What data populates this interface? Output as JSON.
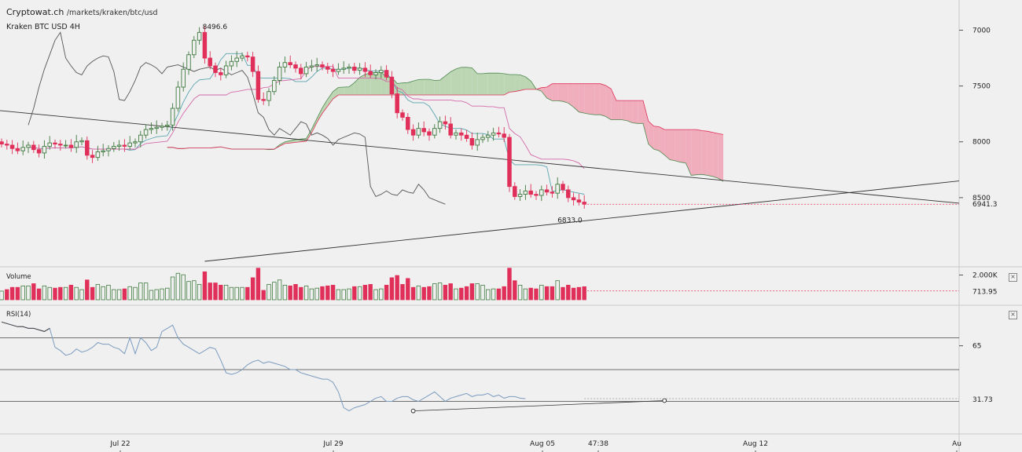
{
  "header": {
    "site": "Cryptowat.ch",
    "path": "/markets/kraken/btc/usd",
    "subtitle": "Kraken BTC USD 4H"
  },
  "colors": {
    "background": "#f0f0f0",
    "up": "#3f7a3f",
    "down": "#e0305a",
    "cloud_bull": "#bcd6b4",
    "cloud_bear": "#f0aebd",
    "tenkan": "#5aa5b0",
    "kijun": "#d46aa8",
    "chikou": "#555555",
    "rsi_line": "#7b9bbf",
    "trendline": "#333333"
  },
  "x_axis": {
    "labels": [
      "Jul 22",
      "Jul 29",
      "Aug 05",
      "47:38",
      "Aug 12",
      "Au"
    ]
  },
  "price_panel": {
    "y_ticks": [
      "8500",
      "8000",
      "7500",
      "7000"
    ],
    "last_price_label": "6941.3",
    "high_annotation": "8496.6",
    "low_annotation": "6833.0"
  },
  "volume_panel": {
    "title": "Volume",
    "y_tick": "2.000K",
    "last_value_label": "713.95",
    "close_glyph": "×"
  },
  "rsi_panel": {
    "title": "RSI(14)",
    "y_tick": "65",
    "last_value_label": "31.73",
    "close_glyph": "×"
  },
  "chart_data": [
    {
      "type": "line",
      "title": "Kraken BTC USD 4H",
      "subtype": "candlestick with Ichimoku cloud",
      "x_range": [
        "Jul 18",
        "Aug 13"
      ],
      "ylim": [
        6500,
        8700
      ],
      "y_ticks": [
        7000,
        7500,
        8000,
        8500
      ],
      "last_price": 6941.3,
      "annotations": [
        {
          "label": "8496.6",
          "value": 8496.6
        },
        {
          "label": "6833.0",
          "value": 6833.0
        }
      ],
      "closes": [
        7480,
        7470,
        7440,
        7420,
        7450,
        7470,
        7430,
        7400,
        7460,
        7490,
        7480,
        7470,
        7470,
        7450,
        7500,
        7510,
        7380,
        7360,
        7410,
        7420,
        7440,
        7460,
        7470,
        7460,
        7490,
        7500,
        7560,
        7610,
        7620,
        7630,
        7640,
        7650,
        7800,
        7990,
        8150,
        8280,
        8410,
        8480,
        8250,
        8180,
        8120,
        8100,
        8180,
        8220,
        8250,
        8270,
        8260,
        8130,
        7880,
        7870,
        7950,
        8050,
        8170,
        8210,
        8190,
        8160,
        8110,
        8170,
        8180,
        8190,
        8170,
        8150,
        8130,
        8150,
        8160,
        8170,
        8140,
        8160,
        8130,
        8100,
        8120,
        8140,
        8080,
        7930,
        7760,
        7720,
        7610,
        7560,
        7620,
        7590,
        7560,
        7620,
        7680,
        7660,
        7560,
        7580,
        7560,
        7530,
        7470,
        7520,
        7540,
        7560,
        7580,
        7570,
        7540,
        7100,
        7010,
        7030,
        7060,
        7030,
        7020,
        7070,
        7050,
        7040,
        7120,
        7070,
        7000,
        6980,
        6960,
        6941.3
      ],
      "volume_series": {
        "name": "Volume",
        "last": 713.95
      },
      "rsi_series": {
        "name": "RSI(14)",
        "last": 31.73,
        "values": [
          80,
          79,
          78,
          77,
          77,
          76,
          76,
          75,
          74,
          76,
          64,
          62,
          59,
          60,
          63,
          61,
          62,
          64,
          67,
          66,
          66,
          64,
          63,
          60,
          70,
          60,
          70,
          67,
          62,
          64,
          74,
          76,
          78,
          70,
          66,
          64,
          62,
          60,
          62,
          64,
          63,
          56,
          48,
          47,
          48,
          50,
          53,
          55,
          56,
          54,
          55,
          54,
          53,
          52,
          50,
          50,
          48,
          47,
          46,
          45,
          44,
          44,
          42,
          36,
          26,
          24,
          26,
          27,
          28,
          30,
          32,
          33,
          30,
          30,
          32,
          33,
          33,
          31,
          30,
          32,
          34,
          36,
          33,
          30,
          32,
          33,
          34,
          35,
          33,
          34,
          34,
          35,
          33,
          34,
          32,
          33,
          33,
          32,
          31.73
        ]
      }
    }
  ]
}
